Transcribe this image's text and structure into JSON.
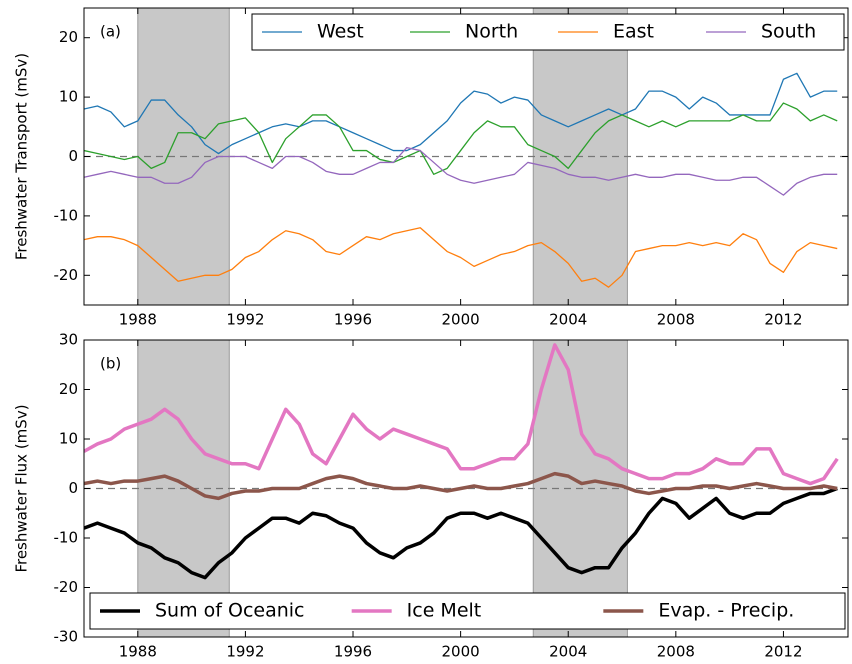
{
  "chart_data": [
    {
      "type": "line",
      "panel_label": "(a)",
      "ylabel": "Freshwater Transport (mSv)",
      "xlim": [
        1986,
        2014.4
      ],
      "xticks": [
        1988,
        1992,
        1996,
        2000,
        2004,
        2008,
        2012
      ],
      "ylim": [
        -25,
        25
      ],
      "yticks": [
        -20,
        -10,
        0,
        10,
        20
      ],
      "hline": 0,
      "shaded_spans": [
        [
          1988,
          1991.4
        ],
        [
          2002.7,
          2006.2
        ]
      ],
      "legend": "upper right",
      "line_width": 1.3,
      "x": [
        1986,
        1986.5,
        1987,
        1987.5,
        1988,
        1988.5,
        1989,
        1989.5,
        1990,
        1990.5,
        1991,
        1991.5,
        1992,
        1992.5,
        1993,
        1993.5,
        1994,
        1994.5,
        1995,
        1995.5,
        1996,
        1996.5,
        1997,
        1997.5,
        1998,
        1998.5,
        1999,
        1999.5,
        2000,
        2000.5,
        2001,
        2001.5,
        2002,
        2002.5,
        2003,
        2003.5,
        2004,
        2004.5,
        2005,
        2005.5,
        2006,
        2006.5,
        2007,
        2007.5,
        2008,
        2008.5,
        2009,
        2009.5,
        2010,
        2010.5,
        2011,
        2011.5,
        2012,
        2012.5,
        2013,
        2013.5,
        2014
      ],
      "series": [
        {
          "name": "West",
          "color": "#1f77b4",
          "values": [
            8,
            8.5,
            7.5,
            5,
            6,
            9.5,
            9.5,
            7,
            5,
            2,
            0.5,
            2,
            3,
            4,
            5,
            5.5,
            5,
            6,
            6,
            5,
            4,
            3,
            2,
            1,
            1,
            2,
            4,
            6,
            9,
            11,
            10.5,
            9,
            10,
            9.5,
            7,
            6,
            5,
            6,
            7,
            8,
            7,
            8,
            11,
            11,
            10,
            8,
            10,
            9,
            7,
            7,
            7,
            7,
            13,
            14,
            10,
            11,
            11
          ]
        },
        {
          "name": "North",
          "color": "#2ca02c",
          "values": [
            1,
            0.5,
            0,
            -0.5,
            0,
            -2,
            -1,
            4,
            4,
            3,
            5.5,
            6,
            6.5,
            4,
            -1,
            3,
            5,
            7,
            7,
            5,
            1,
            1,
            -0.5,
            -1,
            0,
            1,
            -3,
            -2,
            1,
            4,
            6,
            5,
            5,
            2,
            1,
            0,
            -2,
            1,
            4,
            6,
            7,
            6,
            5,
            6,
            5,
            6,
            6,
            6,
            6,
            7,
            6,
            6,
            9,
            8,
            6,
            7,
            6
          ]
        },
        {
          "name": "East",
          "color": "#ff7f0e",
          "values": [
            -14,
            -13.5,
            -13.5,
            -14,
            -15,
            -17,
            -19,
            -21,
            -20.5,
            -20,
            -20,
            -19,
            -17,
            -16,
            -14,
            -12.5,
            -13,
            -14,
            -16,
            -16.5,
            -15,
            -13.5,
            -14,
            -13,
            -12.5,
            -12,
            -14,
            -16,
            -17,
            -18.5,
            -17.5,
            -16.5,
            -16,
            -15,
            -14.5,
            -16,
            -18,
            -21,
            -20.5,
            -22,
            -20,
            -16,
            -15.5,
            -15,
            -15,
            -14.5,
            -15,
            -14.5,
            -15,
            -13,
            -14,
            -18,
            -19.5,
            -16,
            -14.5,
            -15,
            -15.5
          ]
        },
        {
          "name": "South",
          "color": "#9467bd",
          "values": [
            -3.5,
            -3,
            -2.5,
            -3,
            -3.5,
            -3.5,
            -4.5,
            -4.5,
            -3.5,
            -1,
            0,
            0,
            0,
            -1,
            -2,
            0,
            0,
            -1,
            -2.5,
            -3,
            -3,
            -2,
            -1,
            -1,
            1.5,
            1,
            -1,
            -3,
            -4,
            -4.5,
            -4,
            -3.5,
            -3,
            -1,
            -1.5,
            -2,
            -3,
            -3.5,
            -3.5,
            -4,
            -3.5,
            -3,
            -3.5,
            -3.5,
            -3,
            -3,
            -3.5,
            -4,
            -4,
            -3.5,
            -3.5,
            -5,
            -6.5,
            -4.5,
            -3.5,
            -3,
            -3
          ]
        }
      ]
    },
    {
      "type": "line",
      "panel_label": "(b)",
      "ylabel": "Freshwater Flux (mSv)",
      "xlim": [
        1986,
        2014.4
      ],
      "xticks": [
        1988,
        1992,
        1996,
        2000,
        2004,
        2008,
        2012
      ],
      "ylim": [
        -30,
        30
      ],
      "yticks": [
        -30,
        -20,
        -10,
        0,
        10,
        20,
        30
      ],
      "hline": 0,
      "shaded_spans": [
        [
          1988,
          1991.4
        ],
        [
          2002.7,
          2006.2
        ]
      ],
      "legend": "lower left",
      "line_width": 3.5,
      "x": [
        1986,
        1986.5,
        1987,
        1987.5,
        1988,
        1988.5,
        1989,
        1989.5,
        1990,
        1990.5,
        1991,
        1991.5,
        1992,
        1992.5,
        1993,
        1993.5,
        1994,
        1994.5,
        1995,
        1995.5,
        1996,
        1996.5,
        1997,
        1997.5,
        1998,
        1998.5,
        1999,
        1999.5,
        2000,
        2000.5,
        2001,
        2001.5,
        2002,
        2002.5,
        2003,
        2003.5,
        2004,
        2004.5,
        2005,
        2005.5,
        2006,
        2006.5,
        2007,
        2007.5,
        2008,
        2008.5,
        2009,
        2009.5,
        2010,
        2010.5,
        2011,
        2011.5,
        2012,
        2012.5,
        2013,
        2013.5,
        2014
      ],
      "series": [
        {
          "name": "Sum of Oceanic",
          "color": "#000000",
          "values": [
            -8,
            -7,
            -8,
            -9,
            -11,
            -12,
            -14,
            -15,
            -17,
            -18,
            -15,
            -13,
            -10,
            -8,
            -6,
            -6,
            -7,
            -5,
            -5.5,
            -7,
            -8,
            -11,
            -13,
            -14,
            -12,
            -11,
            -9,
            -6,
            -5,
            -5,
            -6,
            -5,
            -6,
            -7,
            -10,
            -13,
            -16,
            -17,
            -16,
            -16,
            -12,
            -9,
            -5,
            -2,
            -3,
            -6,
            -4,
            -2,
            -5,
            -6,
            -5,
            -5,
            -3,
            -2,
            -1,
            -1,
            0
          ]
        },
        {
          "name": "Ice Melt",
          "color": "#e377c2",
          "values": [
            7.5,
            9,
            10,
            12,
            13,
            14,
            16,
            14,
            10,
            7,
            6,
            5,
            5,
            4,
            10,
            16,
            13,
            7,
            5,
            10,
            15,
            12,
            10,
            12,
            11,
            10,
            9,
            8,
            4,
            4,
            5,
            6,
            6,
            9,
            20,
            29,
            24,
            11,
            7,
            6,
            4,
            3,
            2,
            2,
            3,
            3,
            4,
            6,
            5,
            5,
            8,
            8,
            3,
            2,
            1,
            2,
            6
          ]
        },
        {
          "name": "Evap. - Precip.",
          "color": "#8c564b",
          "values": [
            1,
            1.5,
            1,
            1.5,
            1.5,
            2,
            2.5,
            1.5,
            0,
            -1.5,
            -2,
            -1,
            -0.5,
            -0.5,
            0,
            0,
            0,
            1,
            2,
            2.5,
            2,
            1,
            0.5,
            0,
            0,
            0.5,
            0,
            -0.5,
            0,
            0.5,
            0,
            0,
            0.5,
            1,
            2,
            3,
            2.5,
            1,
            1.5,
            1,
            0.5,
            -0.5,
            -1,
            -0.5,
            0,
            0,
            0.5,
            0.5,
            0,
            0.5,
            1,
            0.5,
            0,
            0,
            0,
            0.5,
            0
          ]
        }
      ]
    }
  ]
}
